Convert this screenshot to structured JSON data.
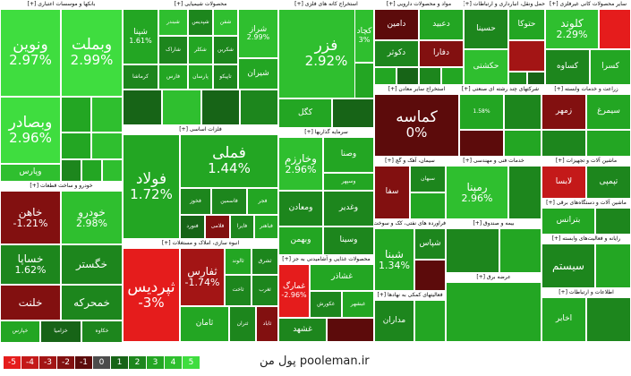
{
  "colors": {
    "-5": "#e51c1c",
    "-4": "#c41919",
    "-3": "#a31515",
    "-2": "#821010",
    "-1": "#5c0b0b",
    "0": "#4c4c4c",
    "1": "#176417",
    "2": "#1d861d",
    "3": "#23a623",
    "4": "#2fbf2f",
    "5": "#3fdd3f"
  },
  "chart_data": {
    "type": "treemap",
    "sectors": [
      {
        "label": "بانکها و موسسات اعتباری [+]",
        "tiles": [
          {
            "label": "ونوین",
            "value": "2.97%",
            "level": 5
          },
          {
            "label": "وبملت",
            "value": "2.99%",
            "level": 5
          },
          {
            "label": "وبصادر",
            "value": "2.96%",
            "level": 5
          },
          {
            "label": "وپارس",
            "value": "",
            "level": 4
          },
          {
            "label": "",
            "value": "",
            "level": 3
          },
          {
            "label": "",
            "value": "",
            "level": 4
          },
          {
            "label": "",
            "value": "",
            "level": 3
          },
          {
            "label": "",
            "value": "",
            "level": 4
          },
          {
            "label": "",
            "value": "",
            "level": 2
          },
          {
            "label": "",
            "value": "",
            "level": 3
          },
          {
            "label": "",
            "value": "",
            "level": 4
          },
          {
            "label": "",
            "value": "",
            "level": 2
          }
        ]
      },
      {
        "label": "محصولات شیمیایی [+]",
        "tiles": [
          {
            "label": "شپنا",
            "value": "1.61%",
            "level": 3
          },
          {
            "label": "شبندر",
            "value": "",
            "level": 4
          },
          {
            "label": "شپدیس",
            "value": "",
            "level": 2
          },
          {
            "label": "شفن",
            "value": "",
            "level": 4
          },
          {
            "label": "شراز",
            "value": "2.99%",
            "level": 4
          },
          {
            "label": "شاراک",
            "value": "",
            "level": 2
          },
          {
            "label": "شکلر",
            "value": "",
            "level": 3
          },
          {
            "label": "شکربن",
            "value": "",
            "level": 2
          },
          {
            "label": "کرماشا",
            "value": "",
            "level": 2
          },
          {
            "label": "فارس",
            "value": "",
            "level": 3
          },
          {
            "label": "پارسان",
            "value": "",
            "level": 3
          },
          {
            "label": "تاپیکو",
            "value": "",
            "level": 2
          },
          {
            "label": "شیران",
            "value": "",
            "level": 3
          },
          {
            "label": "",
            "value": "",
            "level": 1
          },
          {
            "label": "",
            "value": "",
            "level": 4
          },
          {
            "label": "",
            "value": "",
            "level": 1
          },
          {
            "label": "",
            "value": "",
            "level": 2
          }
        ]
      },
      {
        "label": "استخراج کانه های فلزی [+]",
        "tiles": [
          {
            "label": "فزر",
            "value": "2.92%",
            "level": 4
          },
          {
            "label": "کچاد",
            "value": "3%",
            "level": 4
          },
          {
            "label": "کگل",
            "value": "",
            "level": 3
          },
          {
            "label": "",
            "value": "",
            "level": 1
          },
          {
            "label": "",
            "value": "",
            "level": 2
          },
          {
            "label": "",
            "value": "",
            "level": 3
          }
        ]
      },
      {
        "label": "مواد و محصولات دارویی [+]",
        "tiles": [
          {
            "label": "دامین",
            "value": "",
            "level": -1
          },
          {
            "label": "دعبید",
            "value": "",
            "level": 3
          },
          {
            "label": "دکوثر",
            "value": "",
            "level": 2
          },
          {
            "label": "دفارا",
            "value": "",
            "level": -2
          },
          {
            "label": "",
            "value": "",
            "level": 3
          },
          {
            "label": "",
            "value": "",
            "level": 1
          },
          {
            "label": "",
            "value": "",
            "level": 2
          },
          {
            "label": "",
            "value": "",
            "level": 3
          },
          {
            "label": "",
            "value": "",
            "level": 1
          },
          {
            "label": "",
            "value": "",
            "level": 2
          }
        ]
      },
      {
        "label": "حمل ونقل، انبارداری و ارتباطات [+]",
        "tiles": [
          {
            "label": "حسینا",
            "value": "",
            "level": 2
          },
          {
            "label": "حکشتی",
            "value": "",
            "level": 4
          },
          {
            "label": "حتوکا",
            "value": "",
            "level": 3
          },
          {
            "label": "",
            "value": "",
            "level": -3
          },
          {
            "label": "",
            "value": "",
            "level": 2
          },
          {
            "label": "",
            "value": "",
            "level": 1
          },
          {
            "label": "",
            "value": "",
            "level": 3
          }
        ]
      },
      {
        "label": "سایر محصولات کانی غیرفلزی [+]",
        "tiles": [
          {
            "label": "کلوند",
            "value": "2.29%",
            "level": 4
          },
          {
            "label": "کساوه",
            "value": "",
            "level": 2
          },
          {
            "label": "کسرا",
            "value": "",
            "level": 3
          },
          {
            "label": "",
            "value": "",
            "level": -5
          },
          {
            "label": "",
            "value": "",
            "level": 2
          },
          {
            "label": "",
            "value": "",
            "level": 1
          }
        ]
      },
      {
        "label": "خودرو و ساخت قطعات [+]",
        "tiles": [
          {
            "label": "خاهن",
            "value": "-1.21%",
            "level": -2
          },
          {
            "label": "خودرو",
            "value": "2.98%",
            "level": 4
          },
          {
            "label": "خساپا",
            "value": "1.62%",
            "level": 2
          },
          {
            "label": "خگستر",
            "value": "",
            "level": 2
          },
          {
            "label": "خمحرکه",
            "value": "",
            "level": 2
          },
          {
            "label": "خلنت",
            "value": "",
            "level": -2
          },
          {
            "label": "خپارس",
            "value": "",
            "level": 3
          },
          {
            "label": "خزامیا",
            "value": "",
            "level": 1
          },
          {
            "label": "خکاوه",
            "value": "",
            "level": 2
          },
          {
            "label": "خریخت",
            "value": "",
            "level": 1
          },
          {
            "label": "",
            "value": "",
            "level": -1
          },
          {
            "label": "",
            "value": "",
            "level": 2
          }
        ]
      },
      {
        "label": "فلزات اساسی [+]",
        "tiles": [
          {
            "label": "فولاد",
            "value": "1.72%",
            "level": 3
          },
          {
            "label": "فملی",
            "value": "1.44%",
            "level": 3
          },
          {
            "label": "فخوز",
            "value": "",
            "level": 2
          },
          {
            "label": "فاسمین",
            "value": "",
            "level": 2
          },
          {
            "label": "فجر",
            "value": "",
            "level": 3
          },
          {
            "label": "فنورد",
            "value": "",
            "level": 1
          },
          {
            "label": "فلامی",
            "value": "",
            "level": -2
          },
          {
            "label": "فایرا",
            "value": "",
            "level": 2
          },
          {
            "label": "فباهنر",
            "value": "",
            "level": 3
          },
          {
            "label": "کویر",
            "value": "",
            "level": 2
          },
          {
            "label": "فتا",
            "value": "",
            "level": 1
          },
          {
            "label": "",
            "value": "",
            "level": -1
          },
          {
            "label": "",
            "value": "",
            "level": 2
          },
          {
            "label": "",
            "value": "",
            "level": 1
          }
        ]
      },
      {
        "label": "انبوه سازی، املاک و مستغلات [+]",
        "tiles": [
          {
            "label": "ثپردیس",
            "value": "-3%",
            "level": -5
          },
          {
            "label": "ثفارس",
            "value": "-1.74%",
            "level": -3
          },
          {
            "label": "ثالوند",
            "value": "",
            "level": 3
          },
          {
            "label": "ثشرق",
            "value": "",
            "level": 2
          },
          {
            "label": "ثاخت",
            "value": "",
            "level": 2
          },
          {
            "label": "ثغرب",
            "value": "",
            "level": 2
          },
          {
            "label": "ثامان",
            "value": "",
            "level": 3
          },
          {
            "label": "ثتران",
            "value": "",
            "level": 2
          },
          {
            "label": "ثاباد",
            "value": "",
            "level": -2
          },
          {
            "label": "",
            "value": "",
            "level": 1
          }
        ]
      },
      {
        "label": "سرمایه گذاریها [+]",
        "tiles": [
          {
            "label": "وخارزم",
            "value": "2.96%",
            "level": 4
          },
          {
            "label": "وصنا",
            "value": "",
            "level": 3
          },
          {
            "label": "وسپهر",
            "value": "",
            "level": 3
          },
          {
            "label": "ومعادن",
            "value": "",
            "level": 2
          },
          {
            "label": "وغدیر",
            "value": "",
            "level": 2
          },
          {
            "label": "وبهمن",
            "value": "",
            "level": 3
          },
          {
            "label": "وسینا",
            "value": "",
            "level": 2
          },
          {
            "label": "",
            "value": "",
            "level": 1
          },
          {
            "label": "",
            "value": "",
            "level": -1
          },
          {
            "label": "",
            "value": "",
            "level": 2
          }
        ]
      },
      {
        "label": "استخراج سایر معادن [+]",
        "tiles": [
          {
            "label": "کماسه",
            "value": "0%",
            "level": -1
          }
        ]
      },
      {
        "label": "شرکتهای چند رشته ای صنعتی [+]",
        "tiles": [
          {
            "label": "",
            "value": "1.58%",
            "level": 3
          },
          {
            "label": "",
            "value": "",
            "level": 2
          },
          {
            "label": "",
            "value": "",
            "level": -1
          },
          {
            "label": "",
            "value": "",
            "level": 3
          },
          {
            "label": "",
            "value": "",
            "level": 1
          }
        ]
      },
      {
        "label": "زراعت و خدمات وابسته [+]",
        "tiles": [
          {
            "label": "زمهر",
            "value": "",
            "level": -2
          },
          {
            "label": "سیمرغ",
            "value": "",
            "level": 3
          },
          {
            "label": "",
            "value": "",
            "level": 2
          },
          {
            "label": "",
            "value": "",
            "level": 3
          }
        ]
      },
      {
        "label": "محصولات غذایی و آشامیدنی به جز [+]",
        "tiles": [
          {
            "label": "غمارگ",
            "value": "-2.96%",
            "level": -5
          },
          {
            "label": "غشاذر",
            "value": "",
            "level": 3
          },
          {
            "label": "غکورش",
            "value": "",
            "level": 2
          },
          {
            "label": "غبشهر",
            "value": "",
            "level": 3
          },
          {
            "label": "غشهد",
            "value": "",
            "level": 2
          },
          {
            "label": "",
            "value": "",
            "level": -1
          },
          {
            "label": "",
            "value": "",
            "level": 1
          }
        ]
      },
      {
        "label": "سیمان، آهک و گچ [+]",
        "tiles": [
          {
            "label": "سفا",
            "value": "",
            "level": -2
          },
          {
            "label": "سبهان",
            "value": "",
            "level": 2
          },
          {
            "label": "",
            "value": "",
            "level": 3
          },
          {
            "label": "",
            "value": "",
            "level": 2
          }
        ]
      },
      {
        "label": "خدمات فنی و مهندسی [+]",
        "tiles": [
          {
            "label": "رمپنا",
            "value": "2.96%",
            "level": 4
          },
          {
            "label": "",
            "value": "",
            "level": 2
          }
        ]
      },
      {
        "label": "فراورده های نفتی، کک و سوخت [+]",
        "tiles": [
          {
            "label": "شبنا",
            "value": "1.34%",
            "level": 3
          },
          {
            "label": "شپاس",
            "value": "",
            "level": 2
          },
          {
            "label": "",
            "value": "",
            "level": -1
          },
          {
            "label": "",
            "value": "",
            "level": 2
          }
        ]
      },
      {
        "label": "فعالیتهای کمکی به نهادها [+]",
        "tiles": [
          {
            "label": "مداران",
            "value": "",
            "level": 2
          },
          {
            "label": "",
            "value": "",
            "level": 3
          },
          {
            "label": "",
            "value": "",
            "level": 1
          }
        ]
      },
      {
        "label": "ماشین آلات و تجهیزات [+]",
        "tiles": [
          {
            "label": "لابسا",
            "value": "",
            "level": -4
          },
          {
            "label": "تپمپی",
            "value": "",
            "level": 2
          },
          {
            "label": "",
            "value": "",
            "level": 3
          }
        ]
      },
      {
        "label": "ماشین آلات و دستگاه‌های برقی [+]",
        "tiles": [
          {
            "label": "بترانس",
            "value": "",
            "level": 3
          },
          {
            "label": "",
            "value": "",
            "level": 2
          }
        ]
      },
      {
        "label": "رایانه و فعالیت‌های وابسته [+]",
        "tiles": [
          {
            "label": "سیستم",
            "value": "",
            "level": 2
          },
          {
            "label": "",
            "value": "",
            "level": 3
          }
        ]
      },
      {
        "label": "اطلاعات و ارتباطات [+]",
        "tiles": [
          {
            "label": "اخابر",
            "value": "",
            "level": 3
          },
          {
            "label": "",
            "value": "",
            "level": 2
          },
          {
            "label": "",
            "value": "",
            "level": -1
          }
        ]
      },
      {
        "label": "بیمه و صندوق [+]",
        "tiles": [
          {
            "label": "",
            "value": "",
            "level": 2
          },
          {
            "label": "",
            "value": "",
            "level": 3
          }
        ]
      },
      {
        "label": "عرضه برق [+]",
        "tiles": [
          {
            "label": "",
            "value": "",
            "level": 3
          },
          {
            "label": "",
            "value": "",
            "level": 2
          }
        ]
      },
      {
        "label": "هتل و رستوران [+]",
        "tiles": [
          {
            "label": "",
            "value": "",
            "level": 3
          }
        ]
      }
    ]
  },
  "legend": {
    "levels": [
      "-5",
      "-4",
      "-3",
      "-2",
      "-1",
      "0",
      "1",
      "2",
      "3",
      "4",
      "5"
    ]
  },
  "brand": {
    "text_fa": "پول من",
    "text_en": "pooleman.ir"
  }
}
